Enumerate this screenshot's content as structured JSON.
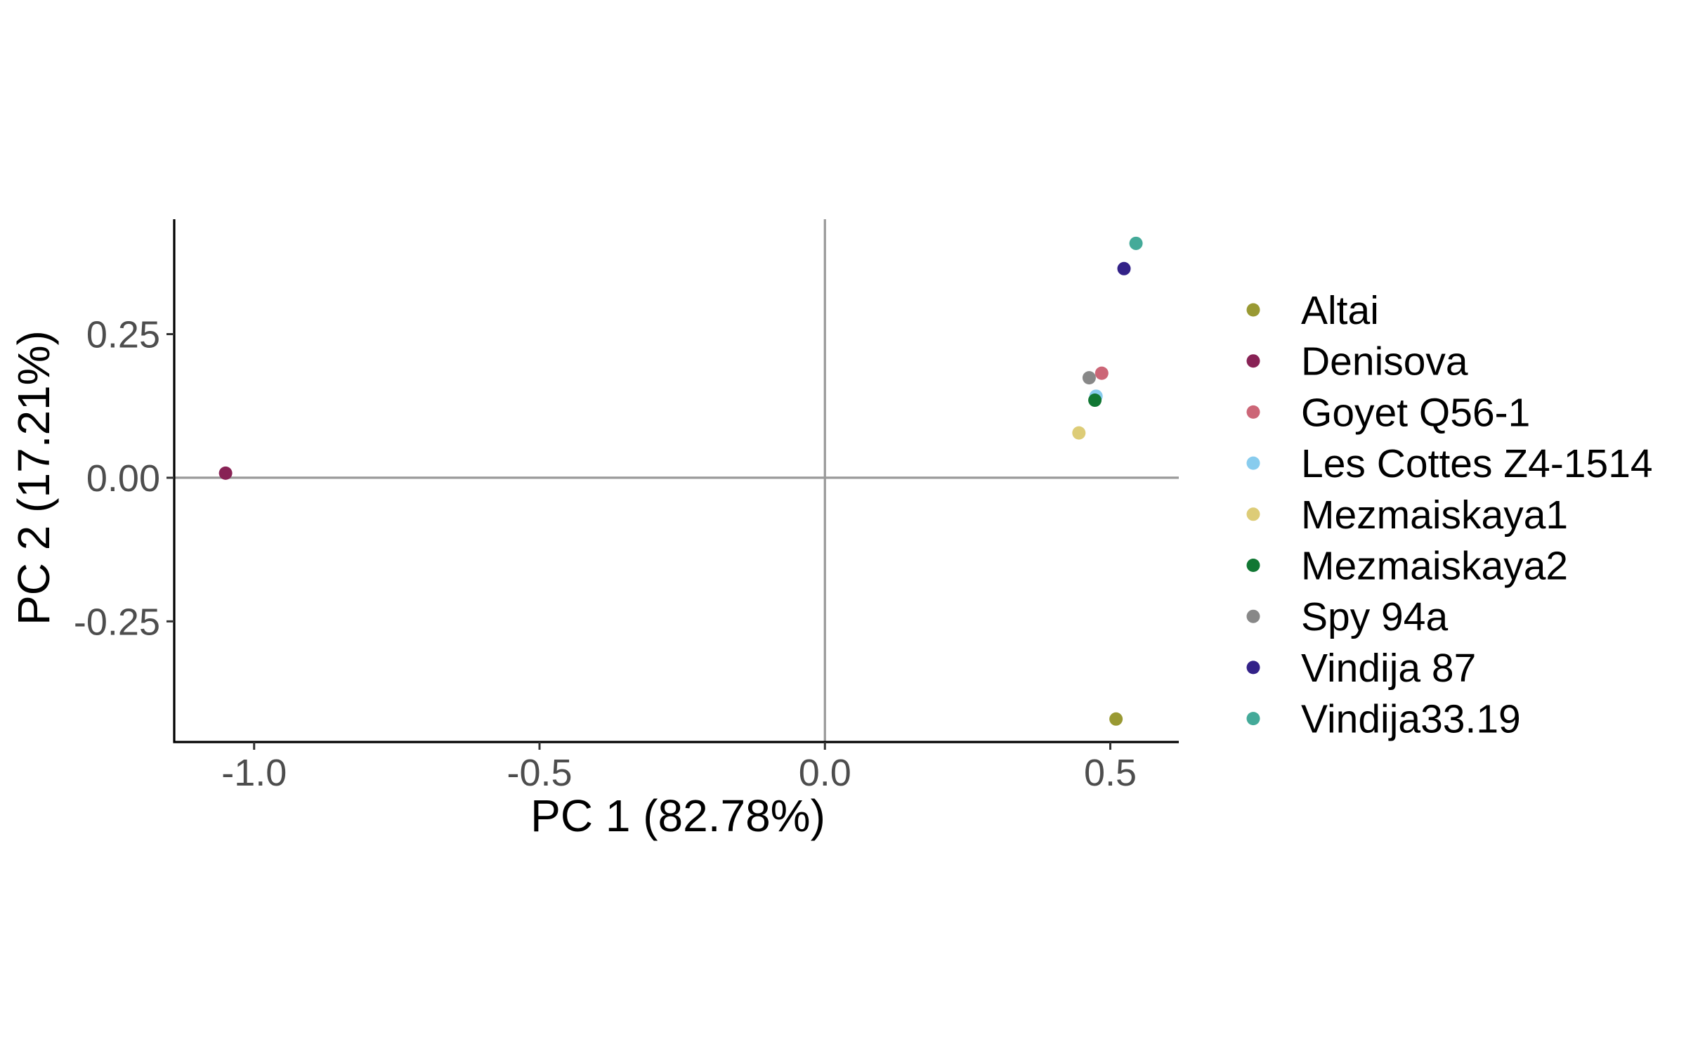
{
  "chart_data": {
    "type": "scatter",
    "title": "",
    "xlabel": "PC 1 (82.78%)",
    "ylabel": "PC 2 (17.21%)",
    "xlim": [
      -1.14,
      0.62
    ],
    "ylim": [
      -0.46,
      0.45
    ],
    "x_ticks": [
      {
        "value": -1.0,
        "label": "-1.0"
      },
      {
        "value": -0.5,
        "label": "-0.5"
      },
      {
        "value": 0.0,
        "label": "0.0"
      },
      {
        "value": 0.5,
        "label": "0.5"
      }
    ],
    "y_ticks": [
      {
        "value": 0.25,
        "label": "0.25"
      },
      {
        "value": 0.0,
        "label": "0.00"
      },
      {
        "value": -0.25,
        "label": "-0.25"
      }
    ],
    "reference_lines": {
      "x": 0,
      "y": 0,
      "color": "#999999"
    },
    "grid": false,
    "legend_position": "right",
    "series": [
      {
        "name": "Altai",
        "color": "#999933",
        "x": 0.51,
        "y": -0.42
      },
      {
        "name": "Denisova",
        "color": "#882255",
        "x": -1.05,
        "y": 0.008
      },
      {
        "name": "Goyet Q56-1",
        "color": "#CC6677",
        "x": 0.485,
        "y": 0.182
      },
      {
        "name": "Les Cottes Z4-1514",
        "color": "#88CCEE",
        "x": 0.475,
        "y": 0.142
      },
      {
        "name": "Mezmaiskaya1",
        "color": "#DDCC77",
        "x": 0.445,
        "y": 0.078
      },
      {
        "name": "Mezmaiskaya2",
        "color": "#117733",
        "x": 0.473,
        "y": 0.135
      },
      {
        "name": "Spy 94a",
        "color": "#888888",
        "x": 0.463,
        "y": 0.174
      },
      {
        "name": "Vindija 87",
        "color": "#332288",
        "x": 0.524,
        "y": 0.364
      },
      {
        "name": "Vindija33.19",
        "color": "#44AA99",
        "x": 0.545,
        "y": 0.408
      }
    ]
  }
}
